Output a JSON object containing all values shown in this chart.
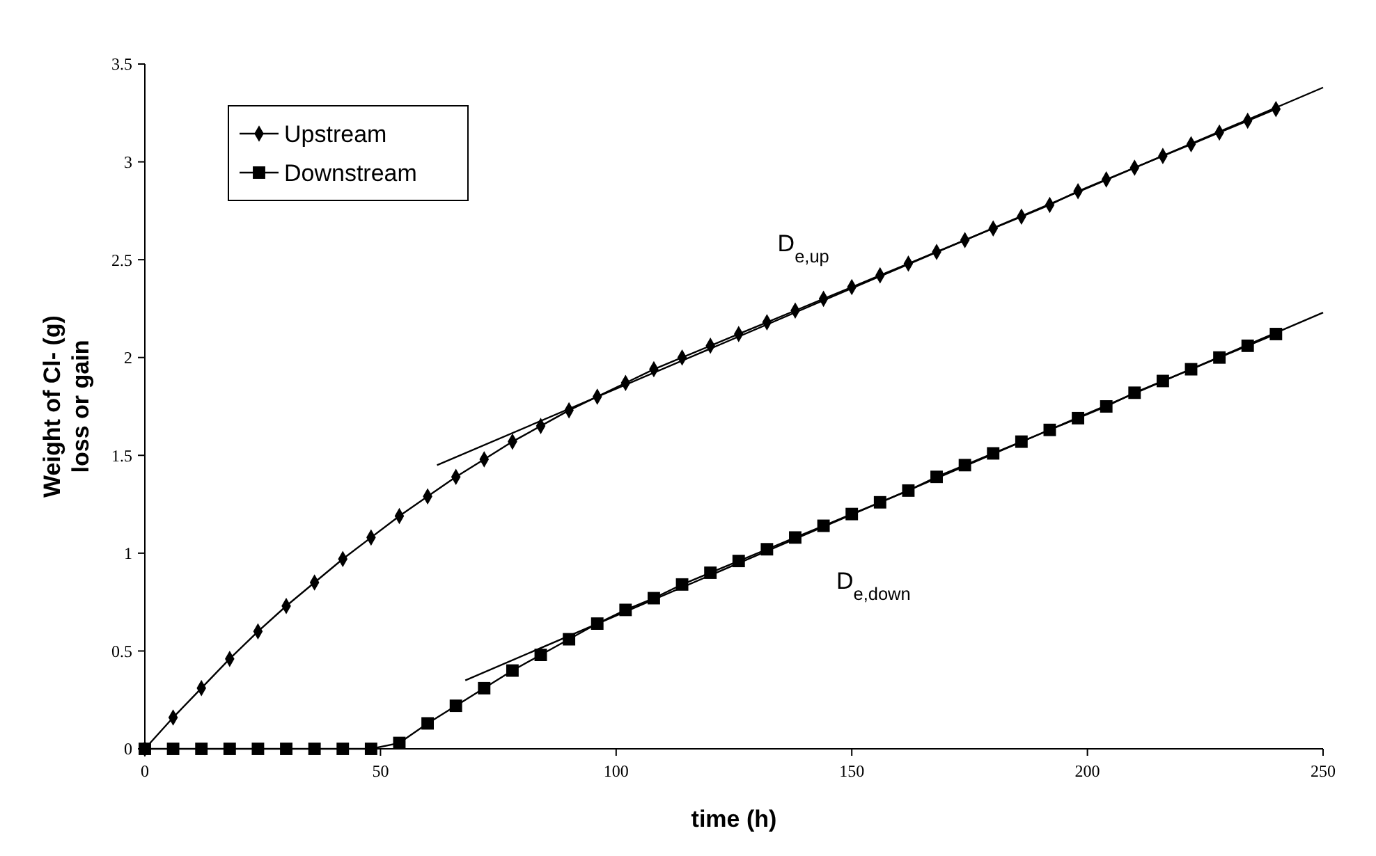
{
  "chart_data": {
    "type": "line",
    "xlabel": "time (h)",
    "ylabel": "Weight of Cl- (g)\nloss or gain",
    "xlim": [
      0,
      250
    ],
    "ylim": [
      0,
      3.5
    ],
    "xticks": [
      0,
      50,
      100,
      150,
      200,
      250
    ],
    "yticks": [
      0,
      0.5,
      1,
      1.5,
      2,
      2.5,
      3,
      3.5
    ],
    "grid": false,
    "legend": "top left",
    "line_style": "solid",
    "series": [
      {
        "name": "Upstream",
        "color": "#000000",
        "marker": "diamond",
        "x": [
          0,
          6,
          12,
          18,
          24,
          30,
          36,
          42,
          48,
          54,
          60,
          66,
          72,
          78,
          84,
          90,
          96,
          102,
          108,
          114,
          120,
          126,
          132,
          138,
          144,
          150,
          156,
          162,
          168,
          174,
          180,
          186,
          192,
          198,
          204,
          210,
          216,
          222,
          228,
          234,
          240
        ],
        "values": [
          0,
          0.16,
          0.31,
          0.46,
          0.6,
          0.73,
          0.85,
          0.97,
          1.08,
          1.19,
          1.29,
          1.39,
          1.48,
          1.57,
          1.65,
          1.73,
          1.8,
          1.87,
          1.94,
          2,
          2.06,
          2.12,
          2.18,
          2.24,
          2.3,
          2.36,
          2.42,
          2.48,
          2.54,
          2.6,
          2.66,
          2.72,
          2.78,
          2.85,
          2.91,
          2.97,
          3.03,
          3.09,
          3.15,
          3.21,
          3.27
        ]
      },
      {
        "name": "Downstream",
        "color": "#000000",
        "marker": "square",
        "x": [
          0,
          6,
          12,
          18,
          24,
          30,
          36,
          42,
          48,
          54,
          60,
          66,
          72,
          78,
          84,
          90,
          96,
          102,
          108,
          114,
          120,
          126,
          132,
          138,
          144,
          150,
          156,
          162,
          168,
          174,
          180,
          186,
          192,
          198,
          204,
          210,
          216,
          222,
          228,
          234,
          240
        ],
        "values": [
          0,
          0,
          0,
          0,
          0,
          0,
          0,
          0,
          0,
          0.03,
          0.13,
          0.22,
          0.31,
          0.4,
          0.48,
          0.56,
          0.64,
          0.71,
          0.77,
          0.84,
          0.9,
          0.96,
          1.02,
          1.08,
          1.14,
          1.2,
          1.26,
          1.32,
          1.39,
          1.45,
          1.51,
          1.57,
          1.63,
          1.69,
          1.75,
          1.82,
          1.88,
          1.94,
          2,
          2.06,
          2.12
        ]
      },
      {
        "color": "#000000",
        "marker": "none",
        "x": [
          62,
          250
        ],
        "values": [
          1.45,
          3.38
        ]
      },
      {
        "color": "#000000",
        "marker": "none",
        "x": [
          68,
          250
        ],
        "values": [
          0.35,
          2.23
        ]
      }
    ],
    "annotations": [
      "D$_{e,up}$",
      "D$_{e,down}$"
    ]
  }
}
